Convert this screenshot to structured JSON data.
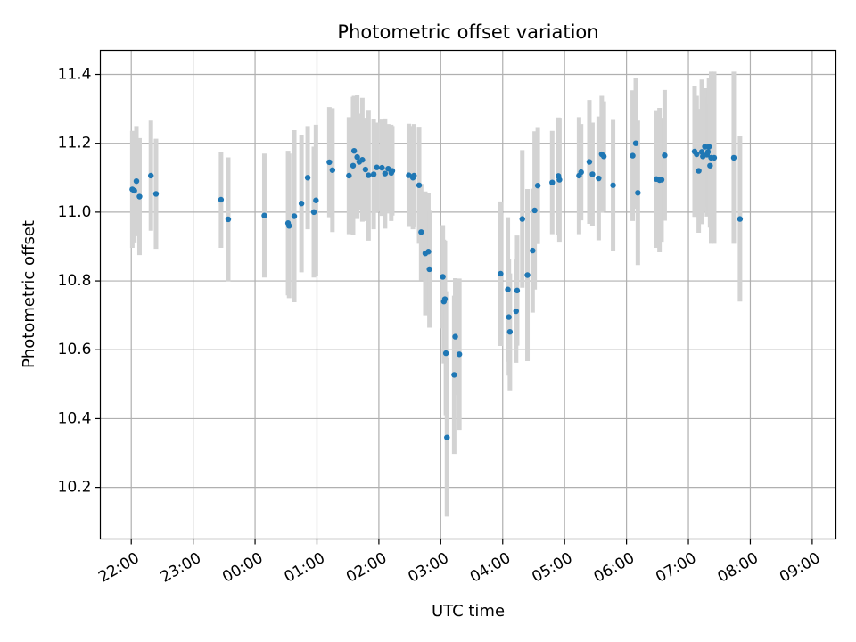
{
  "chart_data": {
    "type": "scatter",
    "title": "Photometric offset variation",
    "xlabel": "UTC time",
    "ylabel": "Photometric offset",
    "x_ticks": [
      "22:00",
      "23:00",
      "00:00",
      "01:00",
      "02:00",
      "03:00",
      "04:00",
      "05:00",
      "06:00",
      "07:00",
      "08:00",
      "09:00"
    ],
    "y_ticks": [
      "10.2",
      "10.4",
      "10.6",
      "10.8",
      "11.0",
      "11.2",
      "11.4"
    ],
    "xlim": [
      "21:30",
      "09:23"
    ],
    "ylim": [
      10.05,
      11.47
    ],
    "grid": true,
    "colors": {
      "points": "#1f77b4",
      "errorbars": "#d3d3d3"
    },
    "series": [
      {
        "x": [
          "22:01",
          "22:03",
          "22:05",
          "22:08",
          "22:19",
          "22:24",
          "23:27",
          "23:34",
          "00:09",
          "00:32",
          "00:33",
          "00:38",
          "00:45",
          "00:51",
          "00:57",
          "00:59",
          "01:12",
          "01:15",
          "01:31",
          "01:35",
          "01:36",
          "01:39",
          "01:41",
          "01:44",
          "01:47",
          "01:50",
          "01:55",
          "01:58",
          "02:03",
          "02:06",
          "02:09",
          "02:12",
          "02:13",
          "02:29",
          "02:33",
          "02:34",
          "02:39",
          "02:41",
          "02:45",
          "02:48",
          "02:49",
          "03:02",
          "03:03",
          "03:04",
          "03:05",
          "03:06",
          "03:13",
          "03:14",
          "03:18",
          "03:58",
          "04:05",
          "04:06",
          "04:07",
          "04:13",
          "04:14",
          "04:19",
          "04:24",
          "04:29",
          "04:31",
          "04:34",
          "04:48",
          "04:54",
          "04:55",
          "05:14",
          "05:16",
          "05:24",
          "05:27",
          "05:33",
          "05:36",
          "05:38",
          "05:47",
          "06:06",
          "06:09",
          "06:11",
          "06:29",
          "06:32",
          "06:34",
          "06:37",
          "07:06",
          "07:08",
          "07:10",
          "07:13",
          "07:14",
          "07:16",
          "07:18",
          "07:19",
          "07:20",
          "07:21",
          "07:22",
          "07:25",
          "07:44",
          "07:50"
        ],
        "y": [
          11.066,
          11.062,
          11.09,
          11.045,
          11.106,
          11.053,
          11.036,
          10.979,
          10.99,
          10.968,
          10.96,
          10.988,
          11.025,
          11.1,
          11.0,
          11.034,
          11.145,
          11.122,
          11.106,
          11.135,
          11.178,
          11.16,
          11.146,
          11.152,
          11.124,
          11.107,
          11.11,
          11.13,
          11.129,
          11.112,
          11.126,
          11.114,
          11.12,
          11.107,
          11.1,
          11.106,
          11.078,
          10.942,
          10.88,
          10.885,
          10.834,
          10.812,
          10.74,
          10.747,
          10.59,
          10.345,
          10.527,
          10.638,
          10.587,
          10.821,
          10.775,
          10.695,
          10.652,
          10.712,
          10.772,
          10.98,
          10.817,
          10.888,
          11.005,
          11.077,
          11.086,
          11.105,
          11.094,
          11.106,
          11.116,
          11.146,
          11.11,
          11.098,
          11.168,
          11.162,
          11.078,
          11.164,
          11.2,
          11.056,
          11.096,
          11.093,
          11.094,
          11.165,
          11.176,
          11.168,
          11.12,
          11.175,
          11.162,
          11.19,
          11.167,
          11.175,
          11.19,
          11.135,
          11.158,
          11.158,
          11.158,
          10.98
        ],
        "error": [
          0.17,
          0.15,
          0.16,
          0.17,
          0.16,
          0.16,
          0.14,
          0.18,
          0.18,
          0.21,
          0.21,
          0.25,
          0.2,
          0.15,
          0.19,
          0.22,
          0.16,
          0.18,
          0.17,
          0.2,
          0.16,
          0.18,
          0.14,
          0.18,
          0.15,
          0.19,
          0.16,
          0.13,
          0.14,
          0.16,
          0.13,
          0.14,
          0.13,
          0.15,
          0.15,
          0.15,
          0.17,
          0.14,
          0.18,
          0.17,
          0.17,
          0.15,
          0.18,
          0.17,
          0.18,
          0.23,
          0.23,
          0.17,
          0.22,
          0.21,
          0.21,
          0.17,
          0.17,
          0.15,
          0.16,
          0.2,
          0.25,
          0.18,
          0.23,
          0.17,
          0.15,
          0.17,
          0.18,
          0.17,
          0.14,
          0.18,
          0.15,
          0.18,
          0.17,
          0.16,
          0.19,
          0.19,
          0.19,
          0.21,
          0.2,
          0.21,
          0.18,
          0.19,
          0.19,
          0.17,
          0.18,
          0.21,
          0.16,
          0.17,
          0.18,
          0.16,
          0.2,
          0.18,
          0.25,
          0.25,
          0.25,
          0.24
        ]
      }
    ]
  }
}
